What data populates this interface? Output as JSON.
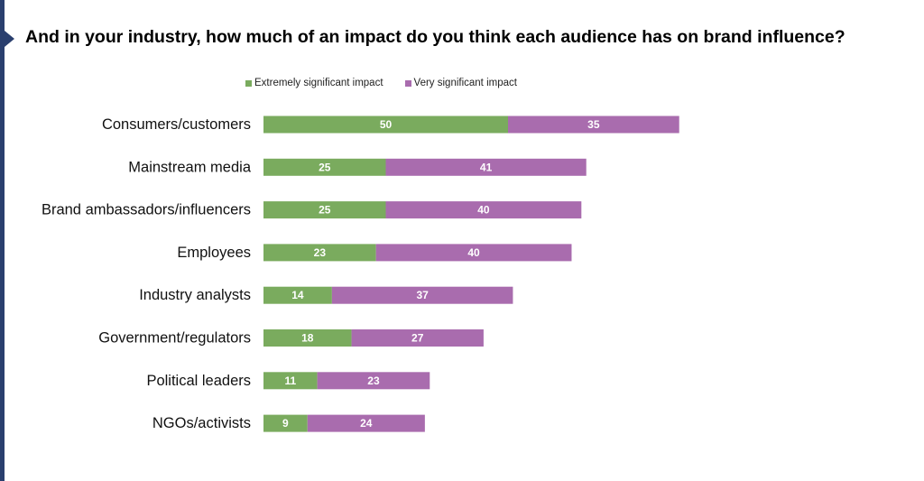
{
  "title": "And in your industry, how much of an impact do you think each audience has on brand influence?",
  "colors": {
    "accent": "#2a3f6e",
    "extremely": "#7aab5e",
    "very": "#a96cae"
  },
  "chart_data": {
    "type": "bar",
    "orientation": "horizontal-stacked",
    "title": "And in your industry, how much of an impact do you think each audience has on brand influence?",
    "categories": [
      "Consumers/customers",
      "Mainstream media",
      "Brand ambassadors/influencers",
      "Employees",
      "Industry analysts",
      "Government/regulators",
      "Political leaders",
      "NGOs/activists"
    ],
    "series": [
      {
        "name": "Extremely significant impact",
        "values": [
          50,
          25,
          25,
          23,
          14,
          18,
          11,
          9
        ]
      },
      {
        "name": "Very significant impact",
        "values": [
          35,
          41,
          40,
          40,
          37,
          27,
          23,
          24
        ]
      }
    ],
    "legend_placement": "top",
    "grid": false,
    "xlim": [
      0,
      85
    ]
  }
}
